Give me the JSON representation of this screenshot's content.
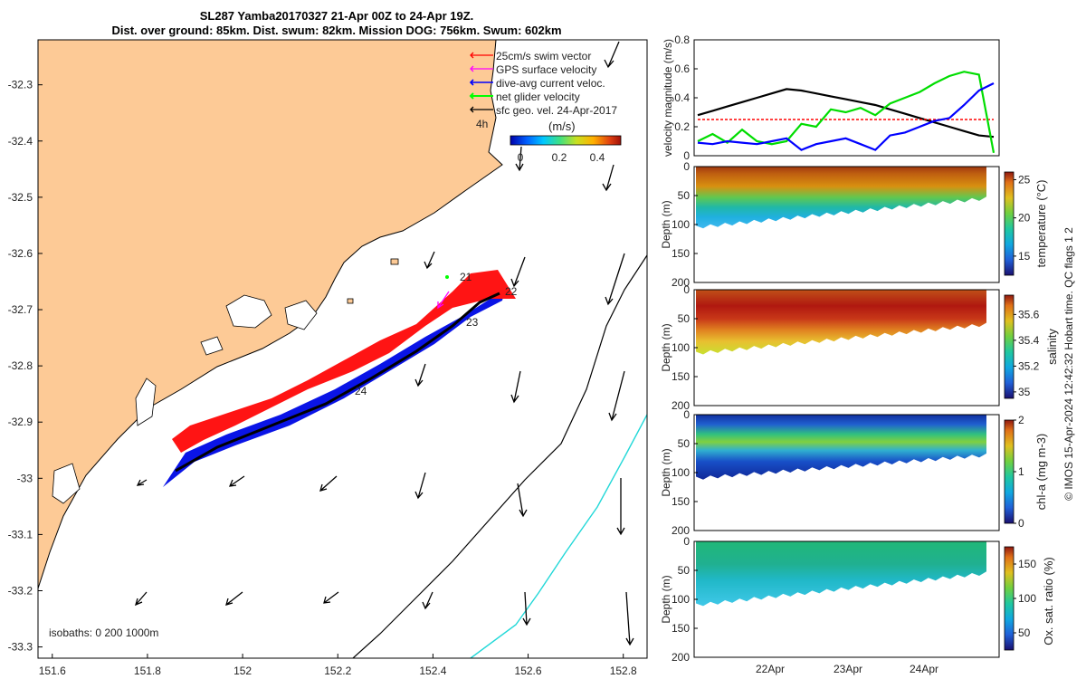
{
  "title": {
    "line1": "SL287 Yamba20170327 21-Apr 00Z to 24-Apr 19Z.",
    "line2": "Dist. over ground: 85km. Dist. swum: 82km. Mission DOG: 756km. Swum: 602km"
  },
  "map": {
    "x_ticks": [
      "151.6",
      "151.8",
      "152",
      "152.2",
      "152.4",
      "152.6",
      "152.8"
    ],
    "y_ticks": [
      "-32.3",
      "-32.4",
      "-32.5",
      "-32.6",
      "-32.7",
      "-32.8",
      "-32.9",
      "-33",
      "-33.1",
      "-33.2",
      "-33.3"
    ],
    "xlim": [
      151.57,
      152.85
    ],
    "ylim": [
      -33.32,
      -32.22
    ],
    "legend": [
      {
        "label": "25cm/s swim vector",
        "color": "#ff0000"
      },
      {
        "label": "GPS surface velocity",
        "color": "#ff00ff"
      },
      {
        "label": "dive-avg current veloc.",
        "color": "#0000ff"
      },
      {
        "label": "net glider velocity",
        "color": "#00ff00"
      },
      {
        "label": "sfc geo. vel. 24-Apr-2017",
        "color": "#000000"
      }
    ],
    "legend_note": "4h",
    "colorbar": {
      "unit": "(m/s)",
      "ticks": [
        "0",
        "0.2",
        "0.4"
      ]
    },
    "day_labels": [
      "21",
      "22",
      "23",
      "24"
    ],
    "isobaths_label": "isobaths: 0   200  1000m"
  },
  "chart_data": [
    {
      "type": "line",
      "ylabel": "velocity magnitude (m/s)",
      "ylim": [
        0,
        0.8
      ],
      "yticks": [
        "0",
        "0.2",
        "0.4",
        "0.6",
        "0.8"
      ],
      "x": [
        0,
        0.5,
        1,
        1.5,
        2,
        2.5,
        3,
        3.5,
        4,
        4.5,
        5,
        5.5,
        6,
        6.5,
        7,
        7.5,
        8,
        8.5,
        9,
        9.5,
        10
      ],
      "series": [
        {
          "name": "geostrophic",
          "color": "#000000",
          "values": [
            0.28,
            0.31,
            0.34,
            0.37,
            0.4,
            0.43,
            0.46,
            0.45,
            0.43,
            0.41,
            0.39,
            0.37,
            0.35,
            0.32,
            0.29,
            0.26,
            0.23,
            0.2,
            0.17,
            0.14,
            0.13
          ]
        },
        {
          "name": "swim",
          "color": "#ff0000",
          "values": [
            0.25,
            0.25,
            0.25,
            0.25,
            0.25,
            0.25,
            0.25,
            0.25,
            0.25,
            0.25,
            0.25,
            0.25,
            0.25,
            0.25,
            0.25,
            0.25,
            0.25,
            0.25,
            0.25,
            0.25,
            0.25
          ]
        },
        {
          "name": "net glider",
          "color": "#00dd00",
          "values": [
            0.1,
            0.15,
            0.09,
            0.18,
            0.1,
            0.08,
            0.1,
            0.22,
            0.2,
            0.32,
            0.3,
            0.33,
            0.28,
            0.36,
            0.4,
            0.44,
            0.5,
            0.55,
            0.58,
            0.56,
            0.02
          ]
        },
        {
          "name": "dive-avg current",
          "color": "#0000ff",
          "values": [
            0.09,
            0.08,
            0.1,
            0.09,
            0.08,
            0.1,
            0.12,
            0.04,
            0.08,
            0.1,
            0.12,
            0.08,
            0.04,
            0.14,
            0.16,
            0.2,
            0.24,
            0.26,
            0.35,
            0.45,
            0.5
          ]
        }
      ]
    },
    {
      "type": "heatmap",
      "variable": "temperature",
      "ylabel": "Depth (m)",
      "ylim": [
        200,
        0
      ],
      "yticks": [
        "0",
        "50",
        "100",
        "150",
        "200"
      ],
      "colorbar_label": "temperature (°C)",
      "colorbar_ticks": [
        "25",
        "20",
        "15"
      ],
      "colorbar_range": [
        12.5,
        26
      ],
      "max_depth_start": 105,
      "max_depth_end": 55
    },
    {
      "type": "heatmap",
      "variable": "salinity",
      "ylabel": "Depth (m)",
      "ylim": [
        200,
        0
      ],
      "yticks": [
        "0",
        "50",
        "100",
        "150",
        "200"
      ],
      "colorbar_label": "salinity",
      "colorbar_ticks": [
        "35.6",
        "35.4",
        "35.2",
        "35"
      ],
      "colorbar_range": [
        34.95,
        35.75
      ],
      "max_depth_start": 110,
      "max_depth_end": 60
    },
    {
      "type": "heatmap",
      "variable": "chl-a",
      "ylabel": "Depth (m)",
      "ylim": [
        200,
        0
      ],
      "yticks": [
        "0",
        "50",
        "100",
        "150",
        "200"
      ],
      "colorbar_label": "chl-a (mg m-3)",
      "colorbar_ticks": [
        "2",
        "1",
        "0"
      ],
      "colorbar_range": [
        0,
        2
      ],
      "max_depth_start": 110,
      "max_depth_end": 70
    },
    {
      "type": "heatmap",
      "variable": "oxygen saturation",
      "ylabel": "Depth (m)",
      "ylim": [
        200,
        0
      ],
      "yticks": [
        "0",
        "50",
        "100",
        "150",
        "200"
      ],
      "colorbar_label": "Ox. sat. ratio (%)",
      "colorbar_ticks": [
        "150",
        "100",
        "50"
      ],
      "colorbar_range": [
        25,
        175
      ],
      "max_depth_start": 110,
      "max_depth_end": 55
    }
  ],
  "time_axis": {
    "ticks": [
      "22Apr",
      "23Apr",
      "24Apr"
    ]
  },
  "credit": "© IMOS 15-Apr-2024 12:42:32 Hobart time. QC flags 1  2"
}
